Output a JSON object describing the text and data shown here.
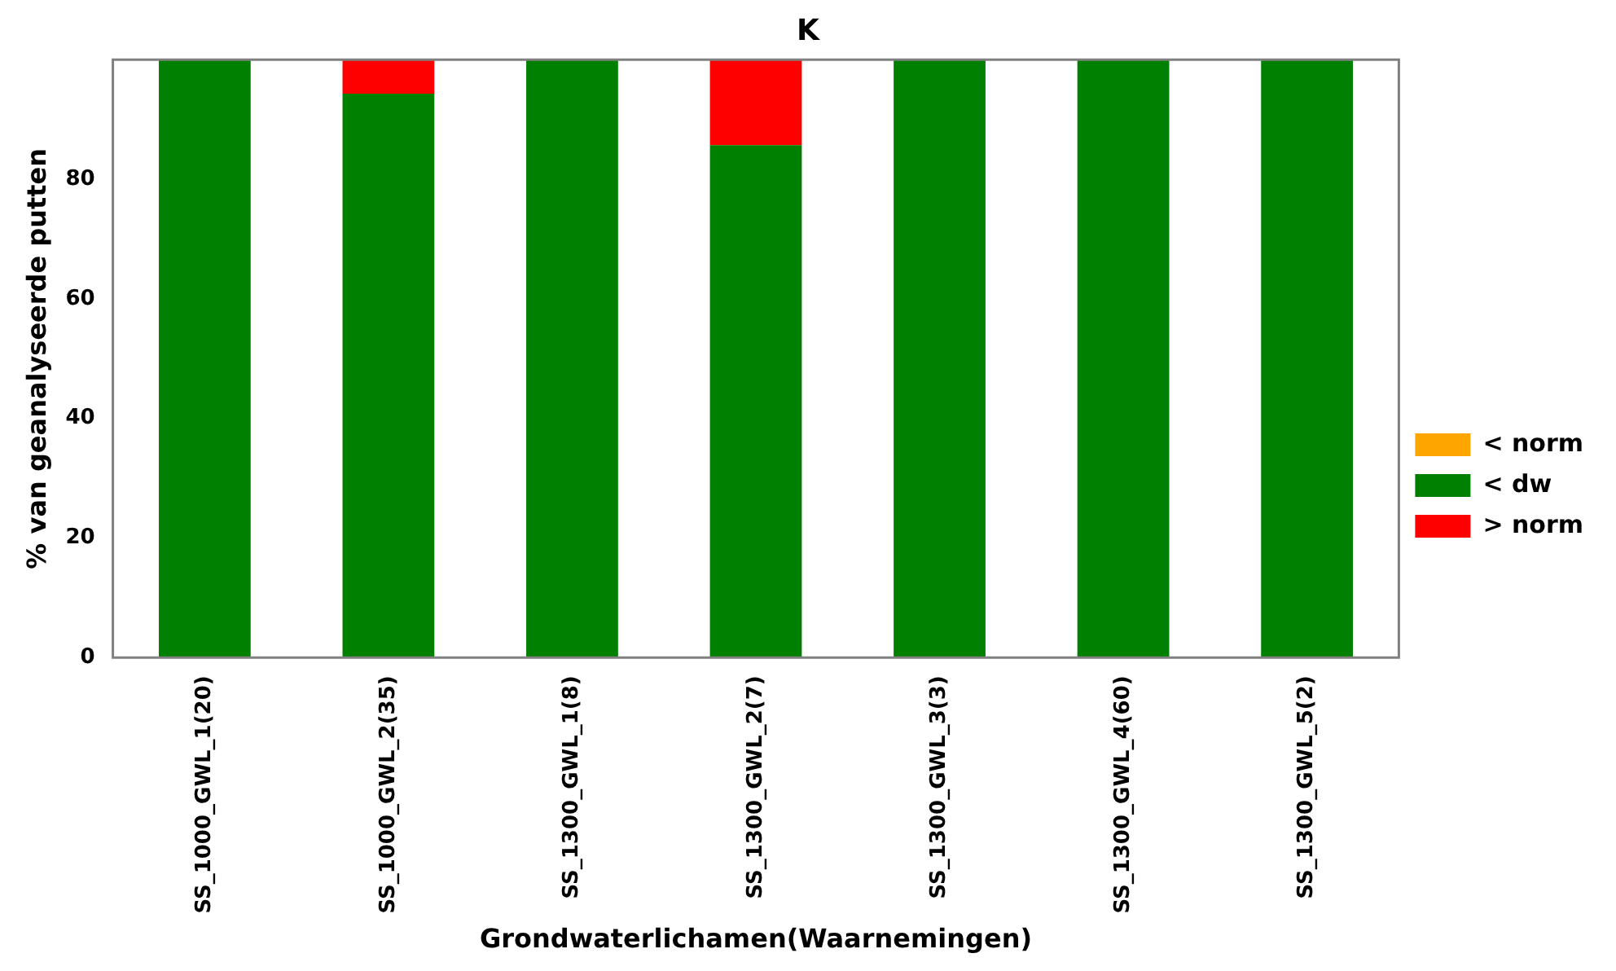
{
  "chart_data": {
    "type": "bar",
    "title": "K",
    "xlabel": "Grondwaterlichamen(Waarnemingen)",
    "ylabel": "% van geanalyseerde putten",
    "categories": [
      "SS_1000_GWL_1(20)",
      "SS_1000_GWL_2(35)",
      "SS_1300_GWL_1(8)",
      "SS_1300_GWL_2(7)",
      "SS_1300_GWL_3(3)",
      "SS_1300_GWL_4(60)",
      "SS_1300_GWL_5(2)"
    ],
    "series": [
      {
        "name": "< norm",
        "color": "#ffa500",
        "values": [
          0,
          0,
          0,
          0,
          0,
          0,
          0
        ]
      },
      {
        "name": "< dw",
        "color": "#008000",
        "values": [
          100,
          94.3,
          100,
          85.7,
          100,
          100,
          100
        ]
      },
      {
        "name": "> norm",
        "color": "#ff0000",
        "values": [
          0,
          5.7,
          0,
          14.3,
          0,
          0,
          0
        ]
      }
    ],
    "stacked": true,
    "ylim": [
      0,
      100
    ],
    "yticks": [
      0,
      20,
      40,
      60,
      80
    ],
    "grid": false,
    "legend": "right"
  }
}
